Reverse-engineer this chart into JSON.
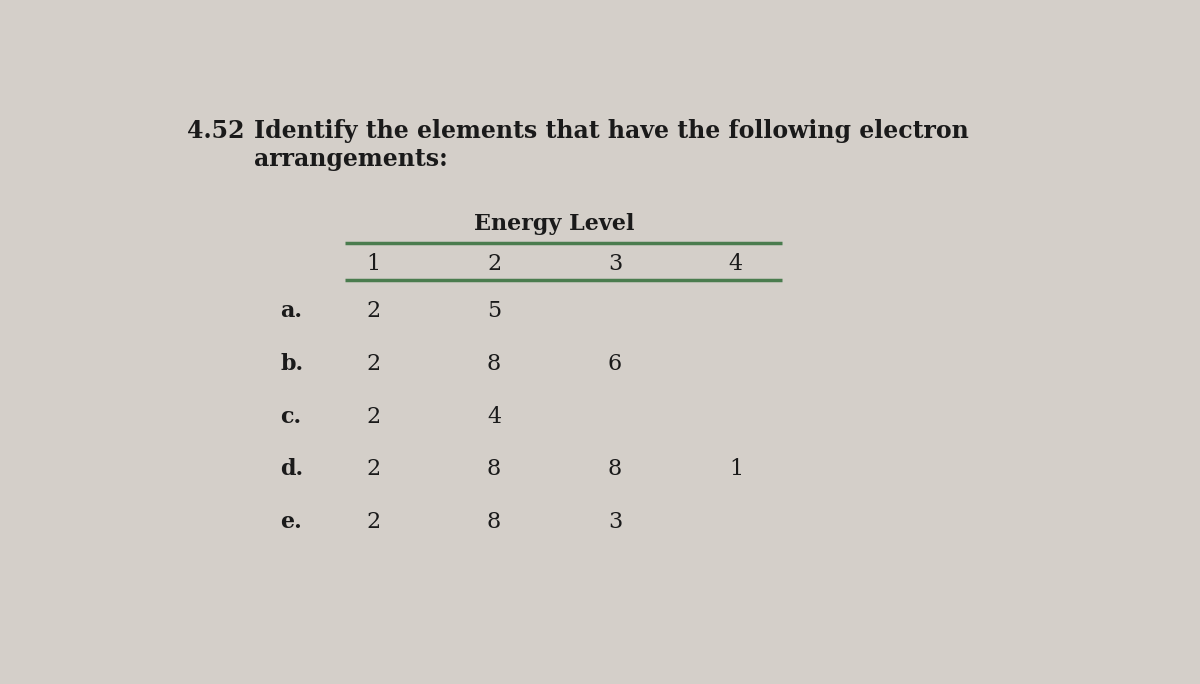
{
  "title_number": "4.52",
  "title_text": "Identify the elements that have the following electron\narrangements:",
  "table_header_group": "Energy Level",
  "col_headers": [
    "1",
    "2",
    "3",
    "4"
  ],
  "row_labels": [
    "a.",
    "b.",
    "c.",
    "d.",
    "e."
  ],
  "table_data": [
    [
      "2",
      "5",
      "",
      ""
    ],
    [
      "2",
      "8",
      "6",
      ""
    ],
    [
      "2",
      "4",
      "",
      ""
    ],
    [
      "2",
      "8",
      "8",
      "1"
    ],
    [
      "2",
      "8",
      "3",
      ""
    ]
  ],
  "bg_color": "#d4cfc9",
  "text_color": "#1a1a1a",
  "header_line_color": "#4a7c4e",
  "title_fontsize": 17,
  "table_fontsize": 16,
  "label_fontsize": 16
}
